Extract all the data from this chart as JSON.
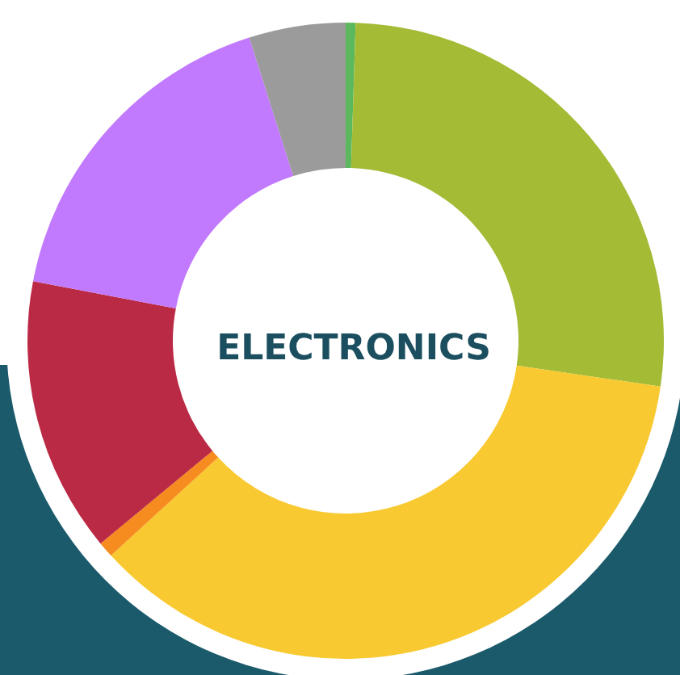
{
  "chart_data": {
    "type": "donut",
    "title": "ELECTRONICS",
    "categories": [
      null,
      null,
      null,
      null,
      null,
      null,
      null
    ],
    "values": [
      0.5,
      26.8,
      35.9,
      0.8,
      14,
      17.1,
      4.9
    ],
    "colors": [
      "#5cb85c",
      "#a3bb35",
      "#f8c930",
      "#f68b1f",
      "#bb2a44",
      "#c17afe",
      "#9b9b9b"
    ]
  }
}
